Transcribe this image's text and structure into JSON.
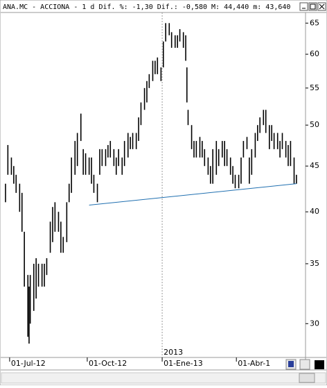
{
  "chart_data": {
    "type": "range-bar",
    "title": "ANA.MC - ACCIONA - 1 d Dif. %: -1,30 Dif.: -0,580 M: 44,440 m: 43,640",
    "year_label": "2013",
    "log_scale": true,
    "color": "#000000",
    "x": [
      0,
      2,
      5,
      7,
      9,
      12,
      14,
      16,
      19,
      20,
      21,
      24,
      26,
      28,
      31,
      33,
      35,
      38,
      40,
      42,
      45,
      47,
      49,
      52,
      54,
      56,
      59,
      61,
      64,
      66,
      68,
      71,
      73,
      75,
      78,
      80,
      82,
      85,
      87,
      89,
      92,
      94,
      96,
      99,
      101,
      104,
      106,
      108,
      111,
      113,
      115,
      118,
      120,
      122,
      125,
      127,
      129,
      132,
      134,
      136,
      139,
      141,
      144,
      146,
      148,
      151,
      153,
      154,
      155,
      158,
      160,
      162,
      165,
      167,
      169,
      172,
      174,
      176,
      179,
      181,
      184,
      186,
      188,
      191,
      193,
      195,
      198,
      200,
      202,
      205,
      207,
      209,
      212,
      214,
      216,
      219,
      221,
      224,
      226,
      228,
      231,
      233,
      235,
      238,
      240,
      242,
      245,
      247
    ],
    "high": [
      43,
      47.5,
      46,
      45,
      44,
      43,
      42,
      38,
      34,
      33,
      34,
      35,
      35.5,
      35,
      35,
      35,
      35.5,
      39,
      40.5,
      41,
      40,
      39,
      37.5,
      41,
      43,
      46,
      48,
      49,
      51.5,
      47,
      46.5,
      46,
      46,
      44,
      43,
      47,
      47,
      47,
      47.5,
      48,
      47,
      46,
      47,
      46,
      48,
      49,
      48.5,
      49,
      49,
      51,
      53,
      55,
      56,
      57,
      59,
      59,
      59.5,
      58,
      62,
      65,
      65,
      63.5,
      63,
      63,
      64,
      63.5,
      63,
      58,
      52,
      50,
      48,
      48,
      48.5,
      48,
      47,
      46,
      45,
      47,
      48,
      47,
      48,
      48,
      47,
      46,
      45,
      44,
      44,
      46,
      48,
      48.5,
      46,
      47,
      49,
      50,
      51,
      52,
      52,
      50,
      50,
      49,
      49,
      48,
      49,
      48,
      47.5,
      48,
      46,
      44
    ],
    "low": [
      41,
      44,
      44,
      43,
      42,
      40,
      38,
      33,
      29,
      28.5,
      30,
      31,
      32,
      33,
      33,
      33,
      34,
      36,
      37,
      38,
      38,
      36,
      36,
      37,
      41,
      42,
      44,
      45,
      48,
      44,
      44,
      44,
      43,
      42,
      41,
      44,
      45,
      45,
      46,
      46,
      45,
      44,
      45,
      44,
      45,
      46,
      47,
      47,
      47,
      48,
      50,
      52,
      53,
      55,
      56,
      57,
      57,
      56,
      58,
      62,
      63,
      61,
      61,
      61,
      62,
      61,
      59,
      53,
      50,
      47,
      46,
      46,
      46,
      46,
      45,
      44,
      43,
      43,
      44,
      45,
      46,
      45,
      45,
      44,
      43,
      42.5,
      42.5,
      43,
      46,
      47,
      43,
      44,
      46,
      48,
      49,
      50,
      49,
      47,
      48,
      47,
      47,
      46,
      47,
      46,
      45,
      45,
      43,
      43
    ],
    "trendline": {
      "x": [
        71,
        247
      ],
      "y": [
        40.7,
        43.0
      ],
      "color": "#1f6fb0"
    },
    "xlim": [
      -3.5,
      254.7
    ],
    "xticks": [
      {
        "value": 3.5,
        "label": "01-Jul-12"
      },
      {
        "value": 69.4,
        "label": "01-Oct-12"
      },
      {
        "value": 133,
        "label": "01-Ene-13"
      },
      {
        "value": 196,
        "label": "01-Abr-1"
      }
    ],
    "year_tick": 133,
    "ylim": [
      27.5,
      66.8
    ],
    "yticks": [
      30,
      35,
      40,
      45,
      50,
      55,
      60,
      65
    ]
  }
}
